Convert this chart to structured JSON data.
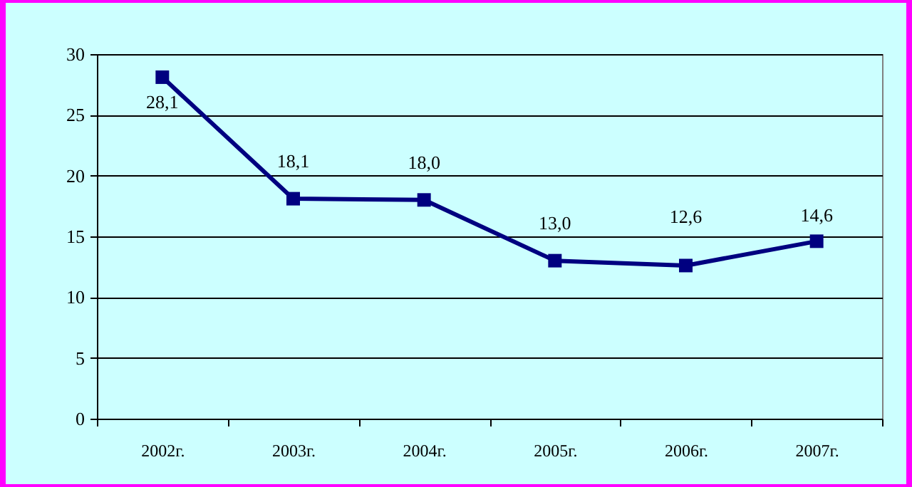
{
  "chart_data": {
    "type": "line",
    "categories": [
      "2002г.",
      "2003г.",
      "2004г.",
      "2005г.",
      "2006г.",
      "2007г."
    ],
    "series": [
      {
        "color": "#000080",
        "values": [
          28.1,
          18.1,
          18.0,
          13.0,
          12.6,
          14.6
        ],
        "value_labels": [
          "28,1",
          "18,1",
          "18,0",
          "13,0",
          "12,6",
          "14,6"
        ]
      }
    ],
    "ylim": [
      0,
      30
    ],
    "yticks": [
      0,
      5,
      10,
      15,
      20,
      25,
      30
    ],
    "grid": "y",
    "marker": "square",
    "line_style": "solid"
  }
}
